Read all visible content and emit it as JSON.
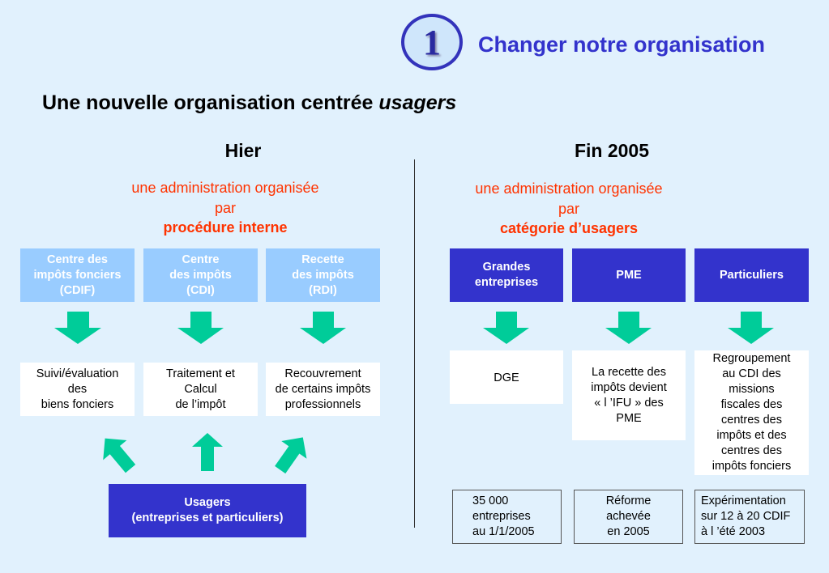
{
  "header": {
    "badge_number": "1",
    "title": "Changer notre organisation"
  },
  "heading": {
    "main": "Une nouvelle organisation centrée ",
    "emphasis": "usagers"
  },
  "left": {
    "title": "Hier",
    "subtitle_lines": [
      "une administration organisée",
      "par"
    ],
    "subtitle_bold": "procédure interne",
    "services": [
      "Centre des\nimpôts fonciers\n(CDIF)",
      "Centre\ndes impôts\n(CDI)",
      "Recette\ndes impôts\n(RDI)"
    ],
    "missions": [
      "Suivi/évaluation\ndes\nbiens fonciers",
      "Traitement et\nCalcul\nde l’impôt",
      "Recouvrement\nde certains impôts\nprofessionnels"
    ],
    "users": "Usagers\n(entreprises et particuliers)"
  },
  "right": {
    "title": "Fin 2005",
    "subtitle_lines": [
      "une administration organisée",
      "par"
    ],
    "subtitle_bold": "catégorie d’usagers",
    "categories": [
      "Grandes\nentreprises",
      "PME",
      "Particuliers"
    ],
    "outcomes": [
      "DGE",
      "La recette des\nimpôts devient\n« l ’IFU » des\nPME",
      "Regroupement\nau CDI des\nmissions\nfiscales des\ncentres des\nimpôts et des\ncentres des\nimpôts  fonciers"
    ],
    "notes": [
      "35 000\nentreprises\nau 1/1/2005",
      "Réforme\nachevée\nen 2005",
      "Expérimentation\nsur 12 à 20 CDIF\nà l ’été 2003"
    ]
  },
  "colors": {
    "accent": "#3333cc",
    "light_box": "#99ccff",
    "arrow": "#00cc99",
    "highlight": "#ff3300",
    "background": "#e1f1fd"
  }
}
